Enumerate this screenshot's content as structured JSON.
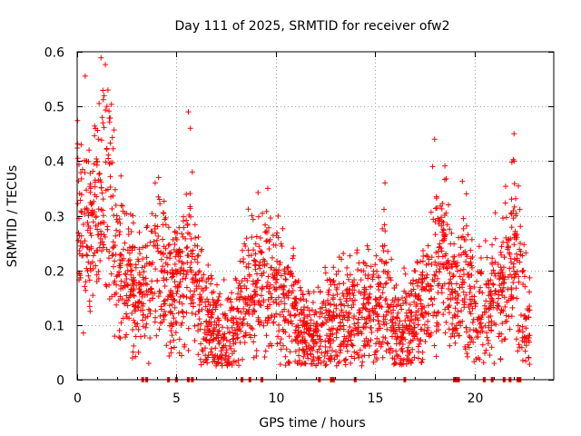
{
  "chart_data": {
    "type": "scatter",
    "title": "Day 111 of 2025, SRMTID for receiver ofw2",
    "xlabel": "GPS time / hours",
    "ylabel": "SRMTID / TECUs",
    "xlim": [
      0,
      24
    ],
    "ylim": [
      0,
      0.6
    ],
    "xticks": [
      0,
      5,
      10,
      15,
      20
    ],
    "yticks": [
      0,
      0.1,
      0.2,
      0.3,
      0.4,
      0.5,
      0.6
    ],
    "grid": true,
    "marker": "+",
    "color": "#ff0000",
    "zero_markers_x": [
      3.3,
      3.5,
      4.6,
      5.0,
      5.6,
      5.8,
      8.3,
      8.7,
      9.3,
      12.2,
      12.8,
      12.9,
      14.0,
      16.5,
      19.0,
      19.1,
      19.2,
      20.5,
      20.9,
      21.5,
      21.8,
      22.2,
      22.3
    ],
    "series_profile": [
      {
        "x": 0.0,
        "y": 0.3
      },
      {
        "x": 0.3,
        "y": 0.33
      },
      {
        "x": 0.6,
        "y": 0.26
      },
      {
        "x": 1.0,
        "y": 0.3
      },
      {
        "x": 1.4,
        "y": 0.38
      },
      {
        "x": 1.7,
        "y": 0.33
      },
      {
        "x": 2.0,
        "y": 0.22
      },
      {
        "x": 2.4,
        "y": 0.2
      },
      {
        "x": 2.8,
        "y": 0.17
      },
      {
        "x": 3.2,
        "y": 0.16
      },
      {
        "x": 3.6,
        "y": 0.18
      },
      {
        "x": 4.0,
        "y": 0.23
      },
      {
        "x": 4.4,
        "y": 0.19
      },
      {
        "x": 4.8,
        "y": 0.15
      },
      {
        "x": 5.2,
        "y": 0.18
      },
      {
        "x": 5.6,
        "y": 0.22
      },
      {
        "x": 6.0,
        "y": 0.16
      },
      {
        "x": 6.5,
        "y": 0.11
      },
      {
        "x": 7.0,
        "y": 0.09
      },
      {
        "x": 7.5,
        "y": 0.08
      },
      {
        "x": 8.0,
        "y": 0.1
      },
      {
        "x": 8.5,
        "y": 0.15
      },
      {
        "x": 9.0,
        "y": 0.2
      },
      {
        "x": 9.5,
        "y": 0.19
      },
      {
        "x": 10.0,
        "y": 0.17
      },
      {
        "x": 10.5,
        "y": 0.14
      },
      {
        "x": 11.0,
        "y": 0.11
      },
      {
        "x": 11.5,
        "y": 0.08
      },
      {
        "x": 12.0,
        "y": 0.07
      },
      {
        "x": 12.5,
        "y": 0.09
      },
      {
        "x": 13.0,
        "y": 0.1
      },
      {
        "x": 13.5,
        "y": 0.11
      },
      {
        "x": 14.0,
        "y": 0.12
      },
      {
        "x": 14.5,
        "y": 0.13
      },
      {
        "x": 15.0,
        "y": 0.1
      },
      {
        "x": 15.4,
        "y": 0.18
      },
      {
        "x": 15.8,
        "y": 0.13
      },
      {
        "x": 16.2,
        "y": 0.08
      },
      {
        "x": 16.6,
        "y": 0.09
      },
      {
        "x": 17.0,
        "y": 0.12
      },
      {
        "x": 17.5,
        "y": 0.15
      },
      {
        "x": 18.0,
        "y": 0.2
      },
      {
        "x": 18.5,
        "y": 0.24
      },
      {
        "x": 19.0,
        "y": 0.14
      },
      {
        "x": 19.5,
        "y": 0.19
      },
      {
        "x": 20.0,
        "y": 0.13
      },
      {
        "x": 20.5,
        "y": 0.12
      },
      {
        "x": 21.0,
        "y": 0.15
      },
      {
        "x": 21.5,
        "y": 0.19
      },
      {
        "x": 22.0,
        "y": 0.23
      },
      {
        "x": 22.5,
        "y": 0.14
      },
      {
        "x": 22.8,
        "y": 0.1
      }
    ],
    "outliers": [
      {
        "x": 1.55,
        "y": 0.53
      },
      {
        "x": 1.5,
        "y": 0.5
      },
      {
        "x": 1.3,
        "y": 0.47
      },
      {
        "x": 0.2,
        "y": 0.43
      },
      {
        "x": 0.6,
        "y": 0.42
      },
      {
        "x": 5.6,
        "y": 0.49
      },
      {
        "x": 5.7,
        "y": 0.46
      },
      {
        "x": 5.8,
        "y": 0.38
      },
      {
        "x": 4.1,
        "y": 0.37
      },
      {
        "x": 9.6,
        "y": 0.35
      },
      {
        "x": 15.5,
        "y": 0.36
      },
      {
        "x": 18.0,
        "y": 0.44
      },
      {
        "x": 17.9,
        "y": 0.39
      },
      {
        "x": 18.7,
        "y": 0.32
      },
      {
        "x": 19.6,
        "y": 0.34
      },
      {
        "x": 21.0,
        "y": 0.03
      },
      {
        "x": 22.0,
        "y": 0.45
      },
      {
        "x": 22.0,
        "y": 0.4
      },
      {
        "x": 16.0,
        "y": 0.03
      },
      {
        "x": 7.8,
        "y": 0.03
      }
    ]
  }
}
